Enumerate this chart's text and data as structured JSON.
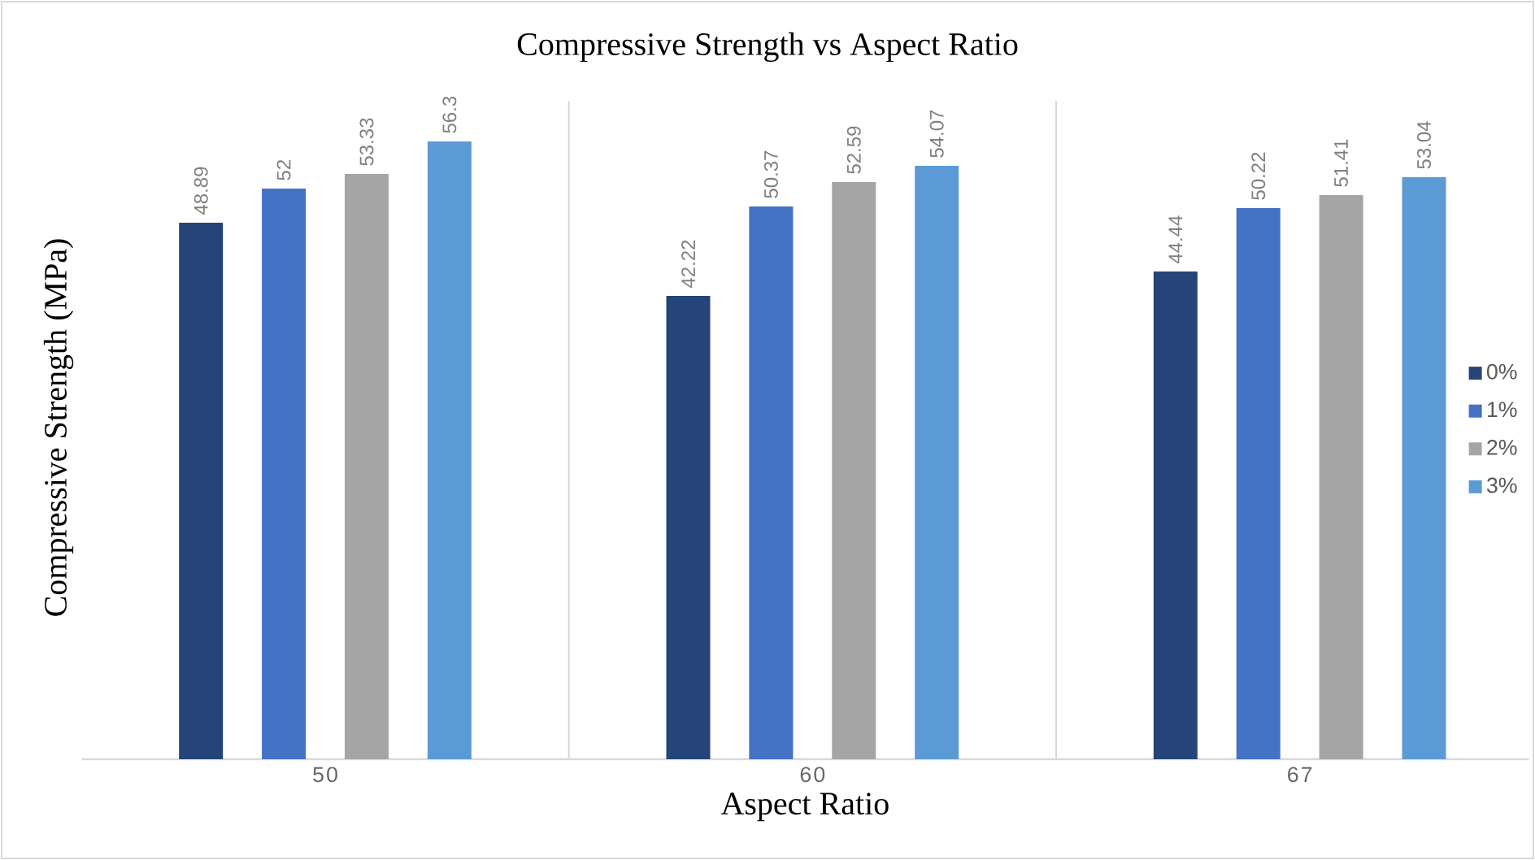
{
  "chart_data": {
    "type": "bar",
    "title": "Compressive Strength vs Aspect Ratio",
    "xlabel": "Aspect Ratio",
    "ylabel": "Compressive Strength (MPa)",
    "categories": [
      "50",
      "60",
      "67"
    ],
    "series": [
      {
        "name": "0%",
        "color": "#264478",
        "values": [
          48.89,
          42.22,
          44.44
        ],
        "value_labels": [
          "48.89",
          "42.22",
          "44.44"
        ]
      },
      {
        "name": "1%",
        "color": "#4472c4",
        "values": [
          52,
          50.37,
          50.22
        ],
        "value_labels": [
          "52",
          "50.37",
          "50.22"
        ]
      },
      {
        "name": "2%",
        "color": "#a5a5a5",
        "values": [
          53.33,
          52.59,
          51.41
        ],
        "value_labels": [
          "53.33",
          "52.59",
          "51.41"
        ]
      },
      {
        "name": "3%",
        "color": "#5b9bd5",
        "values": [
          56.3,
          54.07,
          53.04
        ],
        "value_labels": [
          "56.3",
          "54.07",
          "53.04"
        ]
      }
    ],
    "ylim": [
      0,
      60
    ],
    "tick_labels": "x",
    "legend": "right"
  }
}
